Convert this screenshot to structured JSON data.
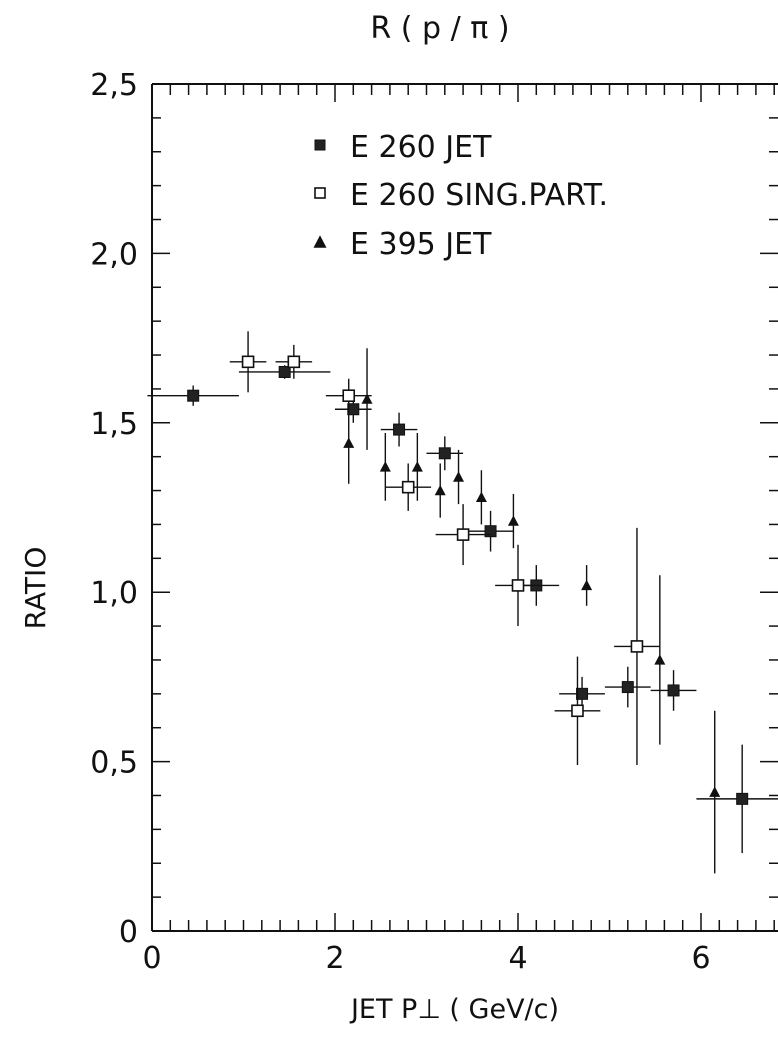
{
  "chart_data": {
    "type": "scatter",
    "title": "R ( p / π )",
    "xlabel": "JET P⊥ ( GeV/c)",
    "ylabel": "RATIO",
    "xlim": [
      0,
      6.8
    ],
    "ylim": [
      0,
      2.5
    ],
    "x_ticks": [
      0,
      2,
      4,
      6
    ],
    "x_tick_labels": [
      "0",
      "2",
      "4",
      "6"
    ],
    "y_ticks": [
      0,
      0.5,
      1.0,
      1.5,
      2.0,
      2.5
    ],
    "y_tick_labels": [
      "0",
      "0,5",
      "1,0",
      "1,5",
      "2,0",
      "2,5"
    ],
    "grid": false,
    "legend": "top-left",
    "series": [
      {
        "name": "E 260 JET",
        "marker": "filled-square",
        "points": [
          {
            "x": 0.45,
            "y": 1.58,
            "xerr": 0.5,
            "yerr": 0.03
          },
          {
            "x": 1.45,
            "y": 1.65,
            "xerr": 0.5,
            "yerr": 0.02
          },
          {
            "x": 2.2,
            "y": 1.54,
            "xerr": 0.2,
            "yerr": 0.04
          },
          {
            "x": 2.7,
            "y": 1.48,
            "xerr": 0.2,
            "yerr": 0.05
          },
          {
            "x": 3.2,
            "y": 1.41,
            "xerr": 0.2,
            "yerr": 0.05
          },
          {
            "x": 3.7,
            "y": 1.18,
            "xerr": 0.25,
            "yerr": 0.06
          },
          {
            "x": 4.2,
            "y": 1.02,
            "xerr": 0.25,
            "yerr": 0.06
          },
          {
            "x": 4.7,
            "y": 0.7,
            "xerr": 0.25,
            "yerr": 0.05
          },
          {
            "x": 5.2,
            "y": 0.72,
            "xerr": 0.25,
            "yerr": 0.06
          },
          {
            "x": 5.7,
            "y": 0.71,
            "xerr": 0.25,
            "yerr": 0.06
          },
          {
            "x": 6.45,
            "y": 0.39,
            "xerr": 0.5,
            "yerr": 0.16
          }
        ]
      },
      {
        "name": "E 260 SING.PART.",
        "marker": "open-square",
        "points": [
          {
            "x": 1.05,
            "y": 1.68,
            "xerr": 0.2,
            "yerr": 0.09
          },
          {
            "x": 1.55,
            "y": 1.68,
            "xerr": 0.2,
            "yerr": 0.05
          },
          {
            "x": 2.15,
            "y": 1.58,
            "xerr": 0.25,
            "yerr": 0.05
          },
          {
            "x": 2.8,
            "y": 1.31,
            "xerr": 0.25,
            "yerr": 0.07
          },
          {
            "x": 3.4,
            "y": 1.17,
            "xerr": 0.3,
            "yerr": 0.09
          },
          {
            "x": 4.0,
            "y": 1.02,
            "xerr": 0.25,
            "yerr": 0.12
          },
          {
            "x": 4.65,
            "y": 0.65,
            "xerr": 0.25,
            "yerr": 0.16
          },
          {
            "x": 5.3,
            "y": 0.84,
            "xerr": 0.25,
            "yerr": 0.35
          }
        ]
      },
      {
        "name": "E 395 JET",
        "marker": "filled-triangle",
        "points": [
          {
            "x": 2.15,
            "y": 1.44,
            "yerr": 0.12
          },
          {
            "x": 2.35,
            "y": 1.57,
            "yerr": 0.15
          },
          {
            "x": 2.55,
            "y": 1.37,
            "yerr": 0.1
          },
          {
            "x": 2.9,
            "y": 1.37,
            "yerr": 0.1
          },
          {
            "x": 3.15,
            "y": 1.3,
            "yerr": 0.08
          },
          {
            "x": 3.35,
            "y": 1.34,
            "yerr": 0.08
          },
          {
            "x": 3.6,
            "y": 1.28,
            "yerr": 0.08
          },
          {
            "x": 3.95,
            "y": 1.21,
            "yerr": 0.08
          },
          {
            "x": 4.75,
            "y": 1.02,
            "yerr": 0.06
          },
          {
            "x": 5.55,
            "y": 0.8,
            "yerr": 0.25
          },
          {
            "x": 6.15,
            "y": 0.41,
            "yerr": 0.24
          }
        ]
      }
    ]
  }
}
